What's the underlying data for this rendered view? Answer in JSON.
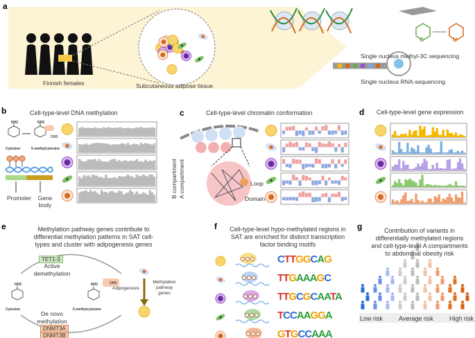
{
  "panel_a": {
    "label": "a",
    "group": "Finnish females",
    "tissue": "Subcutaneous adipose tissue",
    "method1": "Single nucleus methyl-3C sequencing",
    "method2": "Single nucleus RNA-sequencing",
    "base_c": "C",
    "base_u": "U"
  },
  "panel_b": {
    "label": "b",
    "title": "Cell-type-level DNA methylation",
    "cytosine": "Cytosine",
    "methylcytosine": "5-methylcytosine",
    "ch3": "CH3",
    "nh2": "NH2",
    "promoter": "Promoter",
    "gene_body": "Gene body"
  },
  "panel_c": {
    "label": "c",
    "title": "Cell-type-level chromatin conformation",
    "b_compartment": "B compartment",
    "a_compartment": "A compartment",
    "loop": "Loop",
    "domain": "Domain"
  },
  "panel_d": {
    "label": "d",
    "title": "Cell-type-level gene expression"
  },
  "panel_e": {
    "label": "e",
    "title": [
      "Methylation pathway genes contribute to",
      "differential methylation patterns in SAT cell-",
      "types and cluster with adipogenesis genes"
    ],
    "tet": "TET1-3",
    "active": [
      "Active",
      "demethylation"
    ],
    "cytosine": "Cytosine",
    "methylcytosine": "5-methylcytosine",
    "denovo": [
      "De novo",
      "methylation"
    ],
    "dnmt3a": "DNMT3A",
    "dnmt3b": "DNMT3B",
    "adipogenesis": "Adipogenesis",
    "pathway": [
      "Methylation",
      "pathway",
      "genes"
    ],
    "ch3": "CH3",
    "nh2": "NH2"
  },
  "panel_f": {
    "label": "f",
    "title": [
      "Cell-type-level hypo-methylated regions in",
      "SAT are enriched for distinct transcription",
      "factor binding motifs"
    ],
    "motifs": [
      "CTTGGCAG",
      "TTGAAAGC",
      "TTGCGCAATA",
      "TCCAAGGA",
      "GTGCCAAA"
    ]
  },
  "panel_g": {
    "label": "g",
    "title": [
      "Contribution of variants in",
      "differentially methylated regions",
      "and cell-type-level A compartments",
      "to abdominal obesity risk"
    ],
    "low": "Low risk",
    "average": "Average risk",
    "high": "High risk"
  },
  "colors": {
    "adipocyte": "#f5c84c",
    "preadipocyte": "#7fa7d9",
    "immune": "#9b4fc9",
    "fibroblast": "#6aa84f",
    "endothelial": "#d2691e",
    "a_comp": "#f0a0a0",
    "b_comp": "#8fa8e0",
    "band": "#fdf3d5"
  },
  "expression_colors": [
    "#f5b800",
    "#7fb0e0",
    "#b7a0e6",
    "#8cc870",
    "#f0a070"
  ]
}
